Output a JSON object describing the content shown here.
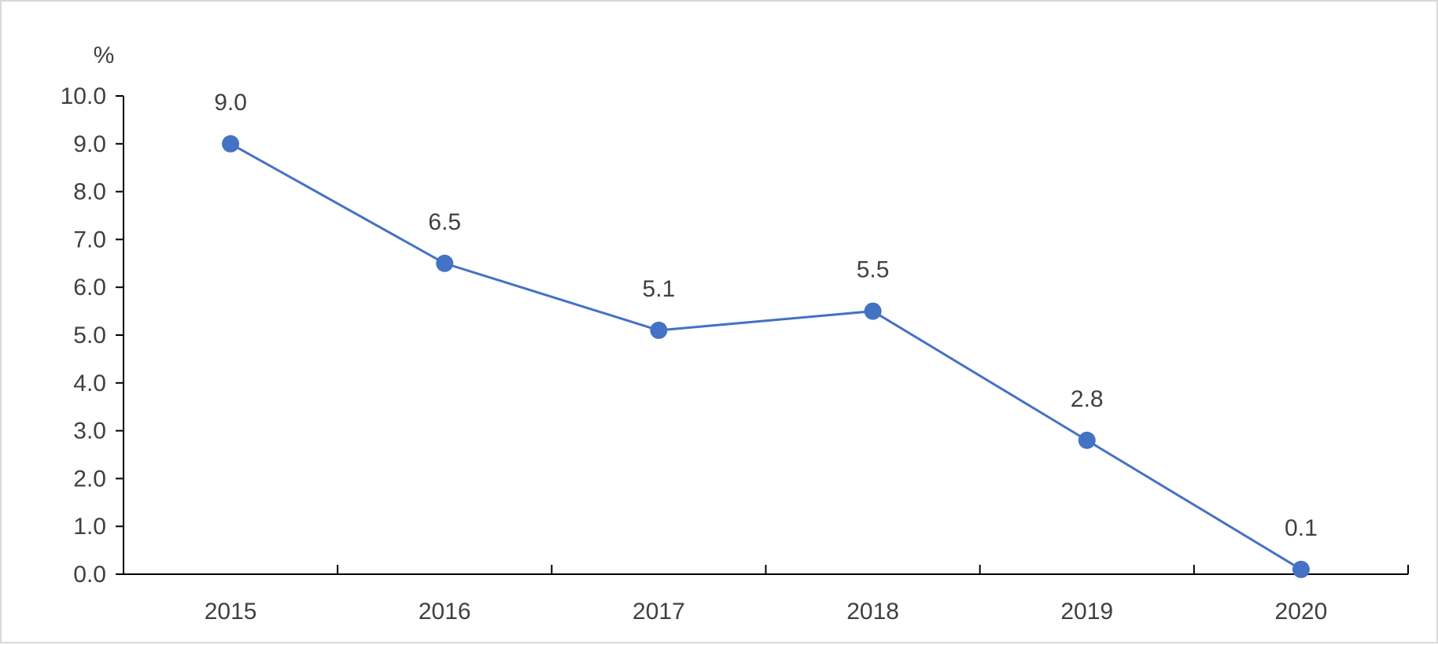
{
  "chart_data": {
    "type": "line",
    "unit_label": "%",
    "categories": [
      "2015",
      "2016",
      "2017",
      "2018",
      "2019",
      "2020"
    ],
    "series": [
      {
        "values": [
          9.0,
          6.5,
          5.1,
          5.5,
          2.8,
          0.1
        ],
        "data_labels": [
          "9.0",
          "6.5",
          "5.1",
          "5.5",
          "2.8",
          "0.1"
        ],
        "color": "#4472c4"
      }
    ],
    "ylim": [
      0,
      10
    ],
    "y_ticks": [
      "0.0",
      "1.0",
      "2.0",
      "3.0",
      "4.0",
      "5.0",
      "6.0",
      "7.0",
      "8.0",
      "9.0",
      "10.0"
    ],
    "grid": false,
    "legend": "none",
    "axis_color": "#000000",
    "text_color": "#404040"
  }
}
